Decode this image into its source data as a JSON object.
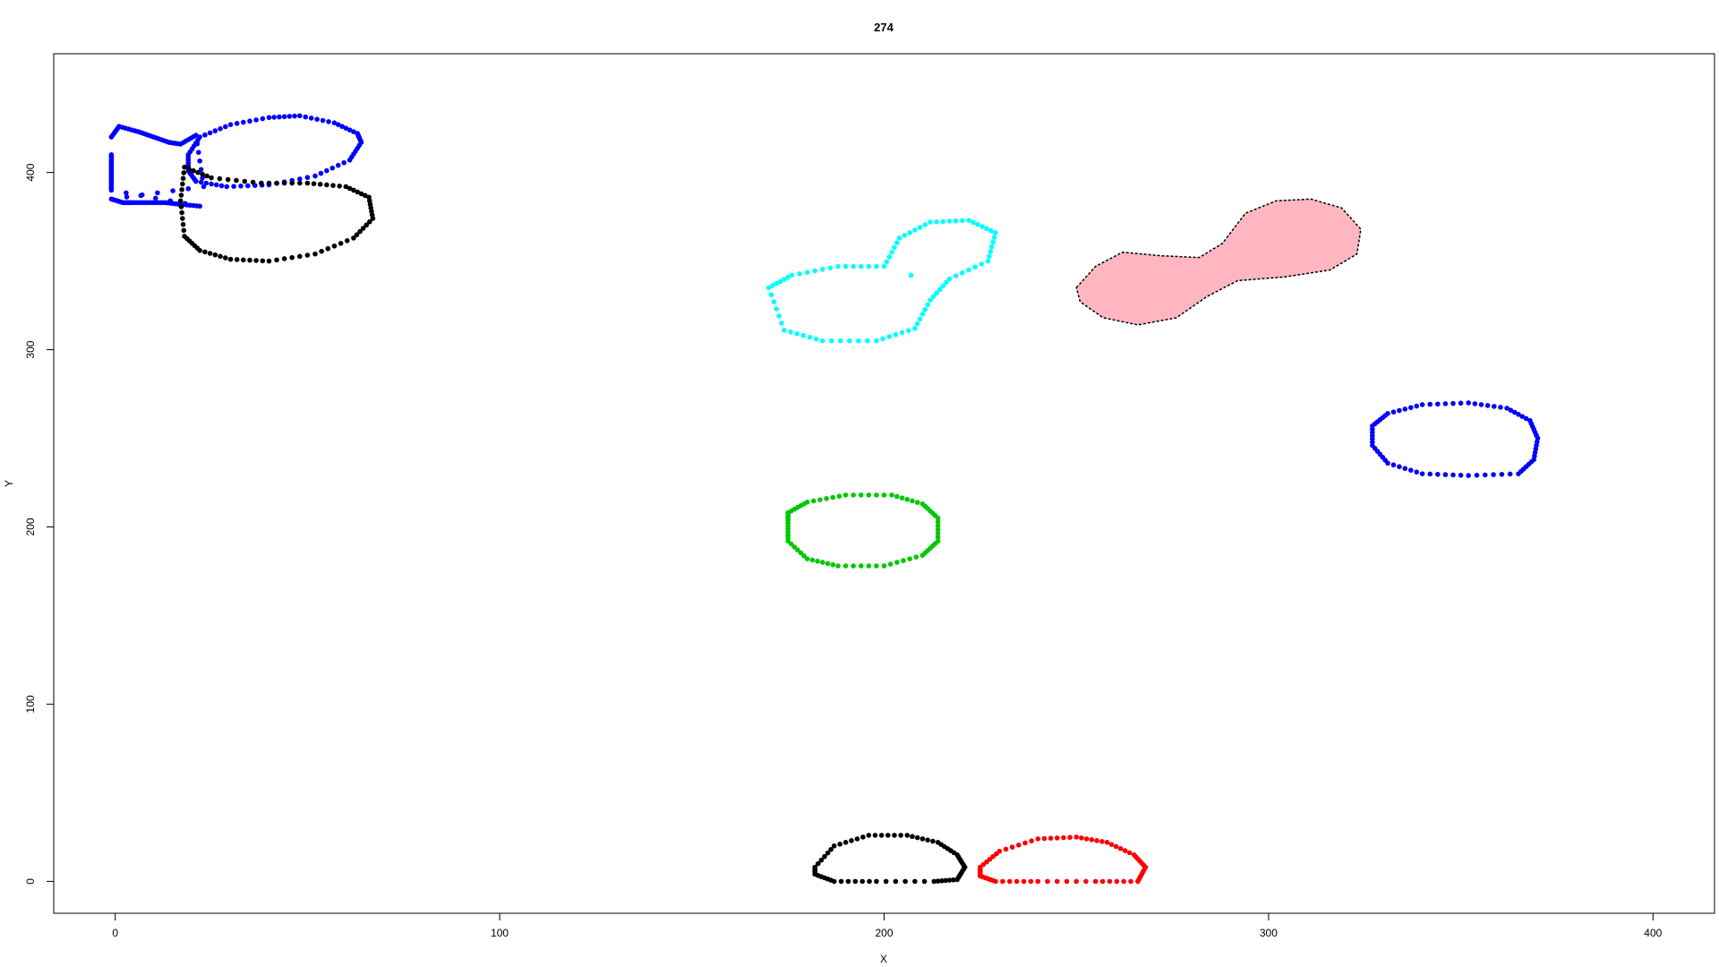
{
  "chart_data": {
    "type": "scatter",
    "title": "274",
    "xlabel": "X",
    "ylabel": "Y",
    "xlim": [
      -16,
      416
    ],
    "ylim": [
      -18,
      467
    ],
    "x_ticks": [
      0,
      100,
      200,
      300,
      400
    ],
    "y_ticks": [
      0,
      100,
      200,
      300,
      400
    ],
    "grid": false,
    "legend": "none",
    "series": [
      {
        "color": "#0000ff",
        "closed": false,
        "points": [
          [
            -1,
            420
          ],
          [
            1,
            426
          ],
          [
            6,
            423
          ],
          [
            10,
            420
          ],
          [
            14,
            417
          ],
          [
            17,
            416
          ],
          [
            21,
            421
          ],
          [
            23,
            392
          ],
          [
            -1,
            385
          ],
          [
            2,
            383
          ],
          [
            5,
            383
          ],
          [
            9,
            383
          ],
          [
            13,
            383
          ],
          [
            17,
            382
          ],
          [
            22,
            381
          ],
          [
            -1,
            390
          ],
          [
            -1,
            395
          ],
          [
            -1,
            400
          ],
          [
            -1,
            405
          ],
          [
            -1,
            410
          ]
        ]
      },
      {
        "color": "#0000ff",
        "closed": true,
        "points": [
          [
            19,
            410
          ],
          [
            22,
            420
          ],
          [
            30,
            427
          ],
          [
            40,
            431
          ],
          [
            48,
            432
          ],
          [
            57,
            428
          ],
          [
            63,
            422
          ],
          [
            64,
            417
          ],
          [
            61,
            407
          ],
          [
            52,
            398
          ],
          [
            40,
            393
          ],
          [
            29,
            392
          ],
          [
            21,
            395
          ],
          [
            19,
            401
          ]
        ]
      },
      {
        "color": "#000000",
        "closed": true,
        "points": [
          [
            18,
            403
          ],
          [
            25,
            397
          ],
          [
            38,
            394
          ],
          [
            50,
            394
          ],
          [
            60,
            392
          ],
          [
            66,
            386
          ],
          [
            67,
            374
          ],
          [
            62,
            363
          ],
          [
            52,
            354
          ],
          [
            40,
            350
          ],
          [
            30,
            351
          ],
          [
            22,
            356
          ],
          [
            18,
            364
          ],
          [
            17,
            384
          ]
        ]
      },
      {
        "color": "#00ffff",
        "closed": true,
        "points": [
          [
            170,
            335
          ],
          [
            176,
            342
          ],
          [
            188,
            347
          ],
          [
            200,
            347
          ],
          [
            204,
            363
          ],
          [
            212,
            372
          ],
          [
            222,
            373
          ],
          [
            229,
            366
          ],
          [
            227,
            350
          ],
          [
            217,
            340
          ],
          [
            212,
            328
          ],
          [
            208,
            312
          ],
          [
            198,
            305
          ],
          [
            184,
            305
          ],
          [
            174,
            311
          ]
        ]
      },
      {
        "color": "#00ffff",
        "closed": false,
        "points": [
          [
            207,
            342
          ]
        ]
      },
      {
        "color": "#0000ff",
        "closed": true,
        "points": [
          [
            327,
            257
          ],
          [
            331,
            264
          ],
          [
            340,
            269
          ],
          [
            352,
            270
          ],
          [
            362,
            267
          ],
          [
            368,
            260
          ],
          [
            370,
            250
          ],
          [
            369,
            238
          ],
          [
            365,
            230
          ],
          [
            352,
            229
          ],
          [
            340,
            230
          ],
          [
            331,
            236
          ],
          [
            327,
            246
          ]
        ]
      },
      {
        "color": "#00c800",
        "closed": true,
        "points": [
          [
            175,
            208
          ],
          [
            180,
            214
          ],
          [
            190,
            218
          ],
          [
            202,
            218
          ],
          [
            210,
            213
          ],
          [
            214,
            205
          ],
          [
            214,
            192
          ],
          [
            210,
            184
          ],
          [
            200,
            178
          ],
          [
            188,
            178
          ],
          [
            180,
            182
          ],
          [
            175,
            192
          ],
          [
            175,
            202
          ]
        ]
      },
      {
        "color": "#000000",
        "closed": true,
        "points": [
          [
            182,
            8
          ],
          [
            187,
            20
          ],
          [
            196,
            26
          ],
          [
            206,
            26
          ],
          [
            214,
            22
          ],
          [
            219,
            15
          ],
          [
            221,
            8
          ],
          [
            219,
            1
          ],
          [
            213,
            0
          ],
          [
            198,
            0
          ],
          [
            187,
            0
          ],
          [
            182,
            4
          ]
        ]
      },
      {
        "color": "#ff0000",
        "closed": true,
        "points": [
          [
            225,
            8
          ],
          [
            230,
            17
          ],
          [
            240,
            24
          ],
          [
            250,
            25
          ],
          [
            258,
            22
          ],
          [
            265,
            15
          ],
          [
            268,
            8
          ],
          [
            266,
            0
          ],
          [
            255,
            0
          ],
          [
            240,
            0
          ],
          [
            229,
            0
          ],
          [
            225,
            3
          ]
        ]
      },
      {
        "color": "#ffb6c1",
        "filled": true,
        "closed": true,
        "points": [
          [
            250,
            335
          ],
          [
            255,
            347
          ],
          [
            262,
            355
          ],
          [
            272,
            353
          ],
          [
            282,
            352
          ],
          [
            288,
            360
          ],
          [
            294,
            377
          ],
          [
            302,
            384
          ],
          [
            311,
            385
          ],
          [
            319,
            380
          ],
          [
            324,
            368
          ],
          [
            323,
            354
          ],
          [
            316,
            345
          ],
          [
            304,
            341
          ],
          [
            292,
            339
          ],
          [
            284,
            330
          ],
          [
            276,
            318
          ],
          [
            266,
            314
          ],
          [
            257,
            318
          ],
          [
            251,
            327
          ]
        ]
      }
    ]
  }
}
